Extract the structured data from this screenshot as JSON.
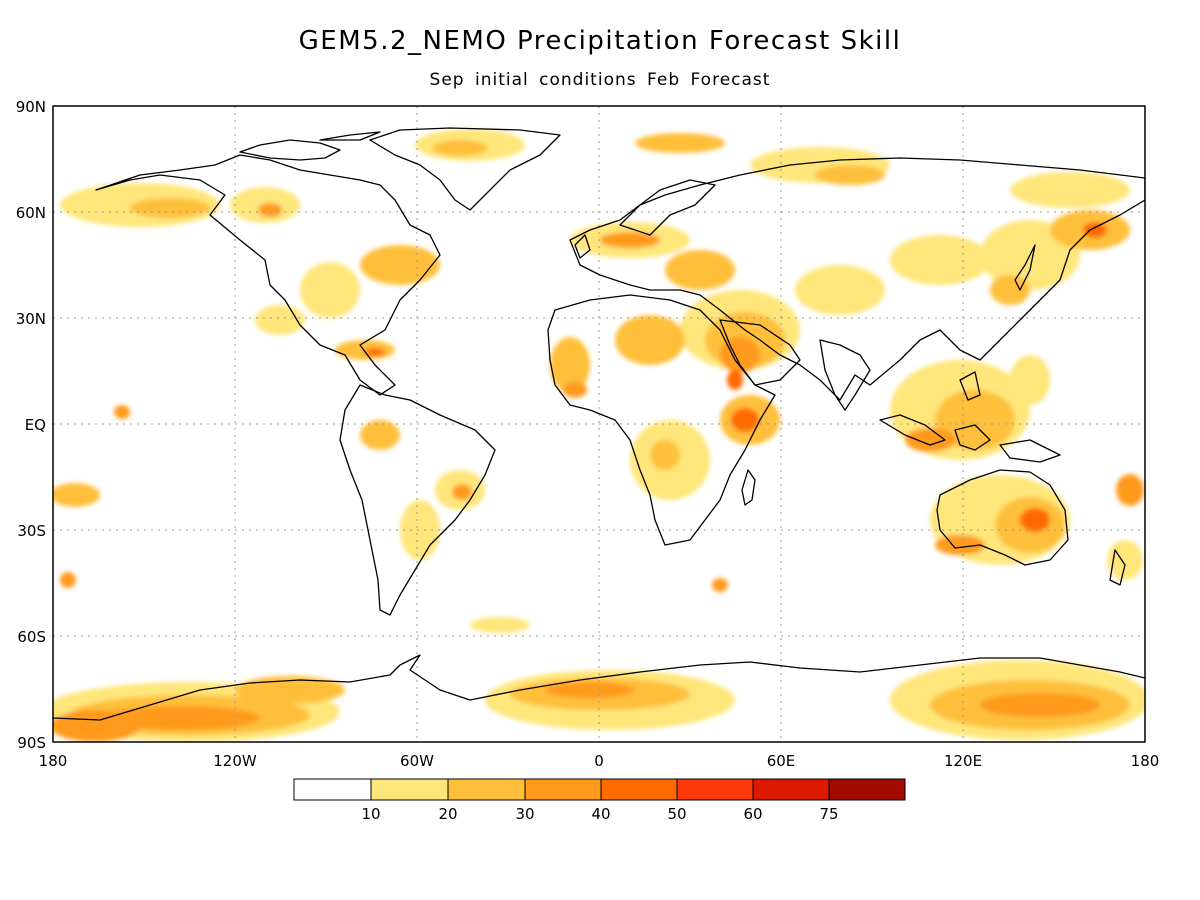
{
  "title": "GEM5.2_NEMO Precipitation Forecast Skill",
  "subtitle": "Sep initial conditions   Feb Forecast",
  "lat_labels": [
    "90N",
    "60N",
    "30N",
    "EQ",
    "30S",
    "60S",
    "90S"
  ],
  "lon_labels": [
    "180",
    "120W",
    "60W",
    "0",
    "60E",
    "120E",
    "180"
  ],
  "colorbar": {
    "tick_labels": [
      "10",
      "20",
      "30",
      "40",
      "50",
      "60",
      "75"
    ],
    "colors": [
      "#ffffff",
      "#ffe67a",
      "#ffbf3a",
      "#ff9a1a",
      "#ff6a00",
      "#ff3a0a",
      "#dd1a00",
      "#a00a00"
    ]
  },
  "map": {
    "lat_range": [
      -90,
      90
    ],
    "lon_range": [
      -180,
      180
    ],
    "grid": "dotted",
    "coastline_color": "#000000"
  }
}
